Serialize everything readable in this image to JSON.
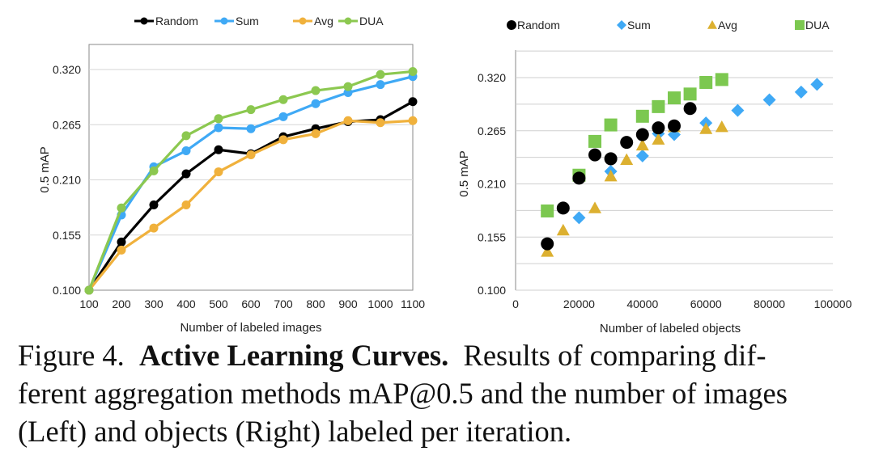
{
  "chart_data": [
    {
      "type": "line",
      "xlabel": "Number of labeled images",
      "ylabel": "0.5 mAP",
      "x": [
        100,
        200,
        300,
        400,
        500,
        600,
        700,
        800,
        900,
        1000,
        1100
      ],
      "ylim": [
        0.1,
        0.32
      ],
      "yticks": [
        "0.100",
        "0.155",
        "0.210",
        "0.265",
        "0.320"
      ],
      "grid": "horizontal",
      "legend_position": "top",
      "series": [
        {
          "name": "Random",
          "color": "#000000",
          "values": [
            0.1,
            0.148,
            0.185,
            0.216,
            0.24,
            0.236,
            0.253,
            0.261,
            0.268,
            0.27,
            0.288
          ]
        },
        {
          "name": "Sum",
          "color": "#3fa9f5",
          "values": [
            0.1,
            0.175,
            0.223,
            0.239,
            0.262,
            0.261,
            0.273,
            0.286,
            0.297,
            0.305,
            0.313
          ]
        },
        {
          "name": "Avg",
          "color": "#f0b13c",
          "values": [
            0.1,
            0.14,
            0.162,
            0.185,
            0.218,
            0.235,
            0.25,
            0.256,
            0.269,
            0.267,
            0.269
          ]
        },
        {
          "name": "DUA",
          "color": "#8cc850",
          "values": [
            0.1,
            0.182,
            0.219,
            0.254,
            0.271,
            0.28,
            0.29,
            0.299,
            0.303,
            0.315,
            0.318
          ]
        }
      ]
    },
    {
      "type": "scatter",
      "xlabel": "Number of labeled objects",
      "ylabel": "0.5 mAP",
      "xlim": [
        0,
        100000
      ],
      "xticks": [
        "0",
        "20000",
        "40000",
        "60000",
        "80000",
        "100000"
      ],
      "ylim": [
        0.1,
        0.32
      ],
      "yticks": [
        "0.100",
        "0.155",
        "0.210",
        "0.265",
        "0.320"
      ],
      "grid": "horizontal",
      "legend_position": "top",
      "series": [
        {
          "name": "Random",
          "marker": "circle",
          "color": "#000000",
          "points": [
            [
              10000,
              0.148
            ],
            [
              15000,
              0.185
            ],
            [
              20000,
              0.216
            ],
            [
              25000,
              0.24
            ],
            [
              30000,
              0.236
            ],
            [
              35000,
              0.253
            ],
            [
              40000,
              0.261
            ],
            [
              45000,
              0.268
            ],
            [
              50000,
              0.27
            ],
            [
              55000,
              0.288
            ]
          ]
        },
        {
          "name": "Sum",
          "marker": "diamond",
          "color": "#3fa9f5",
          "points": [
            [
              20000,
              0.175
            ],
            [
              30000,
              0.223
            ],
            [
              40000,
              0.239
            ],
            [
              45000,
              0.262
            ],
            [
              50000,
              0.261
            ],
            [
              60000,
              0.273
            ],
            [
              70000,
              0.286
            ],
            [
              80000,
              0.297
            ],
            [
              90000,
              0.305
            ],
            [
              95000,
              0.313
            ]
          ]
        },
        {
          "name": "Avg",
          "marker": "triangle",
          "color": "#dcb030",
          "points": [
            [
              10000,
              0.14
            ],
            [
              15000,
              0.162
            ],
            [
              25000,
              0.185
            ],
            [
              30000,
              0.218
            ],
            [
              35000,
              0.235
            ],
            [
              40000,
              0.25
            ],
            [
              45000,
              0.256
            ],
            [
              50000,
              0.269
            ],
            [
              60000,
              0.267
            ],
            [
              65000,
              0.269
            ]
          ]
        },
        {
          "name": "DUA",
          "marker": "square",
          "color": "#7cc850",
          "points": [
            [
              10000,
              0.182
            ],
            [
              20000,
              0.219
            ],
            [
              25000,
              0.254
            ],
            [
              30000,
              0.271
            ],
            [
              40000,
              0.28
            ],
            [
              45000,
              0.29
            ],
            [
              50000,
              0.299
            ],
            [
              55000,
              0.303
            ],
            [
              60000,
              0.315
            ],
            [
              65000,
              0.318
            ]
          ]
        }
      ]
    }
  ],
  "caption": {
    "label": "Figure 4.",
    "title": "Active Learning Curves.",
    "text_line1": "Results of comparing dif-",
    "text_line2": "ferent aggregation methods mAP@0.5 and the number of images",
    "text_line3": "(Left) and objects (Right) labeled per iteration."
  }
}
